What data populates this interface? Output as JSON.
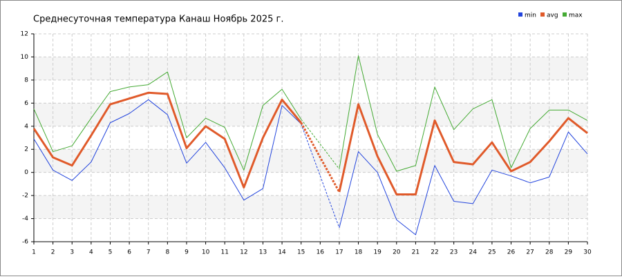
{
  "chart_data": {
    "type": "line",
    "title": "Среднесуточная температура Канаш  Ноябрь 2025 г.",
    "x": [
      1,
      2,
      3,
      4,
      5,
      6,
      7,
      8,
      9,
      10,
      11,
      12,
      13,
      14,
      15,
      16,
      17,
      18,
      19,
      20,
      21,
      22,
      23,
      24,
      25,
      26,
      27,
      28,
      29,
      30
    ],
    "xlim": [
      1,
      30
    ],
    "xticks": [
      1,
      2,
      3,
      4,
      5,
      6,
      7,
      8,
      9,
      10,
      11,
      12,
      13,
      14,
      15,
      16,
      17,
      18,
      19,
      20,
      21,
      22,
      23,
      24,
      25,
      26,
      27,
      28,
      29,
      30
    ],
    "ylim": [
      -6,
      12
    ],
    "yticks": [
      -6,
      -4,
      -2,
      0,
      2,
      4,
      6,
      8,
      10,
      12
    ],
    "grid": true,
    "legend": "top-right",
    "series": [
      {
        "name": "min",
        "color": "#2244dd",
        "values": [
          2.9,
          0.2,
          -0.7,
          0.9,
          4.3,
          5.1,
          6.3,
          5.0,
          0.8,
          2.6,
          0.4,
          -2.4,
          -1.4,
          5.8,
          4.2,
          null,
          -4.8,
          1.8,
          0.0,
          -4.1,
          -5.4,
          0.6,
          -2.5,
          -2.7,
          0.2,
          -0.3,
          -0.9,
          -0.4,
          3.5,
          1.6
        ]
      },
      {
        "name": "avg",
        "color": "#e05a2a",
        "values": [
          3.8,
          1.3,
          0.6,
          3.2,
          5.9,
          6.4,
          6.9,
          6.8,
          2.1,
          4.0,
          2.9,
          -1.3,
          3.0,
          6.3,
          4.3,
          null,
          -1.7,
          5.9,
          1.4,
          -1.9,
          -1.9,
          4.5,
          0.9,
          0.7,
          2.6,
          0.1,
          0.9,
          2.7,
          4.7,
          3.4
        ]
      },
      {
        "name": "max",
        "color": "#44aa33",
        "values": [
          5.5,
          1.8,
          2.3,
          4.7,
          7.0,
          7.4,
          7.6,
          8.7,
          3.0,
          4.7,
          3.9,
          0.2,
          5.8,
          7.2,
          4.6,
          null,
          0.3,
          10.1,
          3.3,
          0.1,
          0.6,
          7.4,
          3.7,
          5.5,
          6.3,
          0.4,
          3.8,
          5.4,
          5.4,
          4.5
        ]
      }
    ]
  }
}
